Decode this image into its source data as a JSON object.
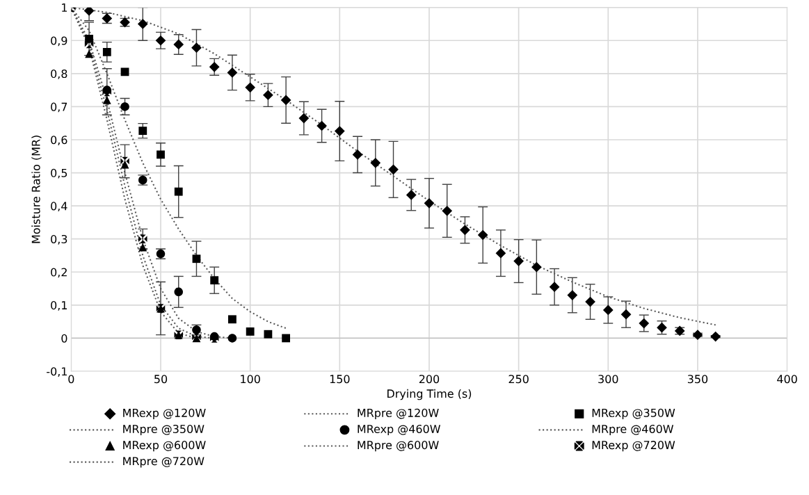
{
  "chart_data": {
    "type": "scatter",
    "xlabel": "Drying Time (s)",
    "ylabel": "Moisture Ratio (MR)",
    "xlim": [
      0,
      400
    ],
    "xticks": [
      0,
      50,
      100,
      150,
      200,
      250,
      300,
      350,
      400
    ],
    "ylim": [
      -0.1,
      1
    ],
    "yticks": [
      {
        "value": -0.1,
        "label": "-0,1"
      },
      0,
      {
        "value": 0.1,
        "label": "0,1"
      },
      {
        "value": 0.2,
        "label": "0,2"
      },
      {
        "value": 0.3,
        "label": "0,3"
      },
      {
        "value": 0.4,
        "label": "0,4"
      },
      {
        "value": 0.5,
        "label": "0,5"
      },
      {
        "value": 0.6,
        "label": "0,6"
      },
      {
        "value": 0.7,
        "label": "0,7"
      },
      {
        "value": 0.8,
        "label": "0,8"
      },
      {
        "value": 0.9,
        "label": "0,9"
      },
      1
    ],
    "grid": true,
    "legend": "bottom",
    "series": [
      {
        "name": "MRexp @120W",
        "type": "scatter",
        "marker": "diamond",
        "color": "#000000",
        "x": [
          10,
          20,
          30,
          40,
          50,
          60,
          70,
          80,
          90,
          100,
          110,
          120,
          130,
          140,
          150,
          160,
          170,
          180,
          190,
          200,
          210,
          220,
          230,
          240,
          250,
          260,
          270,
          280,
          290,
          300,
          310,
          320,
          330,
          340,
          350,
          360
        ],
        "values": [
          0.99,
          0.967,
          0.955,
          0.95,
          0.9,
          0.888,
          0.878,
          0.82,
          0.803,
          0.758,
          0.735,
          0.72,
          0.665,
          0.642,
          0.626,
          0.555,
          0.53,
          0.51,
          0.433,
          0.408,
          0.385,
          0.327,
          0.312,
          0.257,
          0.233,
          0.215,
          0.155,
          0.13,
          0.11,
          0.085,
          0.072,
          0.045,
          0.032,
          0.022,
          0.01,
          0.005
        ],
        "errors": [
          0.03,
          0.015,
          0.012,
          0.05,
          0.025,
          0.03,
          0.055,
          0.025,
          0.053,
          0.04,
          0.035,
          0.07,
          0.05,
          0.05,
          0.09,
          0.055,
          0.07,
          0.085,
          0.047,
          0.075,
          0.08,
          0.04,
          0.085,
          0.07,
          0.065,
          0.082,
          0.055,
          0.053,
          0.053,
          0.04,
          0.04,
          0.025,
          0.02,
          0.01,
          0.005,
          0.003
        ]
      },
      {
        "name": "MRpre @120W",
        "type": "line",
        "line_style": "dotted",
        "color": "#595959",
        "x": [
          0,
          20,
          40,
          60,
          80,
          100,
          120,
          140,
          160,
          180,
          200,
          220,
          240,
          260,
          280,
          300,
          320,
          340,
          360
        ],
        "values": [
          1,
          0.985,
          0.96,
          0.92,
          0.86,
          0.79,
          0.72,
          0.645,
          0.565,
          0.49,
          0.415,
          0.345,
          0.28,
          0.22,
          0.17,
          0.125,
          0.09,
          0.062,
          0.04
        ]
      },
      {
        "name": "MRexp @350W",
        "type": "scatter",
        "marker": "square",
        "color": "#000000",
        "x": [
          10,
          20,
          30,
          40,
          50,
          60,
          70,
          80,
          90,
          100,
          110,
          120
        ],
        "values": [
          0.905,
          0.865,
          0.805,
          0.627,
          0.555,
          0.443,
          0.24,
          0.175,
          0.057,
          0.02,
          0.012,
          0
        ],
        "errors": [
          0.05,
          0.03,
          null,
          0.022,
          0.035,
          0.078,
          0.053,
          0.04,
          null,
          null,
          null,
          null
        ]
      },
      {
        "name": "MRpre @350W",
        "type": "line",
        "line_style": "dotted",
        "color": "#595959",
        "x": [
          0,
          10,
          20,
          30,
          40,
          50,
          60,
          70,
          80,
          90,
          100,
          110,
          120
        ],
        "values": [
          1,
          0.93,
          0.8,
          0.66,
          0.53,
          0.42,
          0.33,
          0.25,
          0.18,
          0.12,
          0.08,
          0.05,
          0.03
        ]
      },
      {
        "name": "MRexp @460W",
        "type": "scatter",
        "marker": "circle",
        "color": "#000000",
        "x": [
          20,
          30,
          40,
          50,
          60,
          70,
          80,
          90
        ],
        "values": [
          0.75,
          0.7,
          0.478,
          0.255,
          0.14,
          0.025,
          0.005,
          0
        ],
        "errors": [
          null,
          0.025,
          0.015,
          0.015,
          0.047,
          0.015,
          null,
          null
        ]
      },
      {
        "name": "MRpre @460W",
        "type": "line",
        "line_style": "dotted",
        "color": "#595959",
        "x": [
          0,
          10,
          20,
          30,
          40,
          50,
          60,
          70,
          80,
          90
        ],
        "values": [
          1,
          0.9,
          0.72,
          0.5,
          0.3,
          0.15,
          0.06,
          0.02,
          0.005,
          0
        ]
      },
      {
        "name": "MRexp @600W",
        "type": "scatter",
        "marker": "triangle",
        "color": "#000000",
        "x": [
          10,
          20,
          30,
          40,
          50,
          60,
          70
        ],
        "values": [
          0.86,
          0.72,
          0.525,
          0.275,
          0.09,
          0.01,
          0
        ]
      },
      {
        "name": "MRpre @600W",
        "type": "line",
        "line_style": "dotted",
        "color": "#595959",
        "x": [
          0,
          10,
          20,
          30,
          40,
          50,
          60,
          70
        ],
        "values": [
          1,
          0.88,
          0.66,
          0.42,
          0.22,
          0.08,
          0.015,
          0
        ]
      },
      {
        "name": "MRexp @720W",
        "type": "scatter",
        "marker": "cross",
        "color": "#000000",
        "x": [
          0,
          10,
          20,
          30,
          40,
          50,
          60,
          70,
          80
        ],
        "values": [
          1,
          0.89,
          0.745,
          0.535,
          0.3,
          0.09,
          0.01,
          0.003,
          0
        ],
        "errors": [
          null,
          null,
          0.07,
          0.05,
          0.03,
          0.08,
          null,
          null,
          null
        ]
      },
      {
        "name": "MRpre @720W",
        "type": "line",
        "line_style": "dotted",
        "color": "#595959",
        "x": [
          0,
          10,
          20,
          30,
          40,
          50,
          60,
          70,
          80
        ],
        "values": [
          1,
          0.89,
          0.69,
          0.46,
          0.25,
          0.1,
          0.03,
          0.005,
          0
        ]
      }
    ]
  }
}
